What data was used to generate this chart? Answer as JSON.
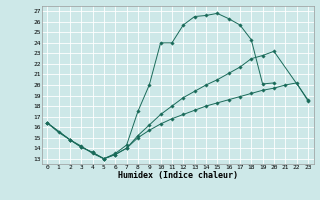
{
  "xlabel": "Humidex (Indice chaleur)",
  "xlim": [
    -0.5,
    23.5
  ],
  "ylim": [
    12.5,
    27.5
  ],
  "xticks": [
    0,
    1,
    2,
    3,
    4,
    5,
    6,
    7,
    8,
    9,
    10,
    11,
    12,
    13,
    14,
    15,
    16,
    17,
    18,
    19,
    20,
    21,
    22,
    23
  ],
  "yticks": [
    13,
    14,
    15,
    16,
    17,
    18,
    19,
    20,
    21,
    22,
    23,
    24,
    25,
    26,
    27
  ],
  "bg_color": "#cde8e8",
  "line_color": "#1a6b5a",
  "grid_color": "#ffffff",
  "line1_x": [
    0,
    1,
    2,
    3,
    4,
    5,
    6,
    7,
    8,
    9,
    10,
    11,
    12,
    13,
    14,
    15,
    16,
    17,
    18,
    19,
    20
  ],
  "line1_y": [
    16.4,
    15.5,
    14.8,
    14.2,
    13.5,
    13.0,
    13.5,
    14.3,
    17.5,
    20.0,
    24.0,
    24.0,
    25.7,
    26.5,
    26.6,
    26.8,
    26.3,
    25.7,
    24.3,
    20.1,
    20.2
  ],
  "line2_x": [
    0,
    2,
    3,
    4,
    5,
    6,
    7,
    8,
    9,
    10,
    11,
    12,
    13,
    14,
    15,
    16,
    17,
    18,
    19,
    20,
    23
  ],
  "line2_y": [
    16.4,
    14.8,
    14.1,
    13.6,
    13.0,
    13.4,
    14.0,
    15.2,
    16.2,
    17.2,
    18.0,
    18.8,
    19.4,
    20.0,
    20.5,
    21.1,
    21.7,
    22.5,
    22.8,
    23.2,
    18.6
  ],
  "line3_x": [
    0,
    2,
    3,
    4,
    5,
    6,
    7,
    8,
    9,
    10,
    11,
    12,
    13,
    14,
    15,
    16,
    17,
    18,
    19,
    20,
    21,
    22,
    23
  ],
  "line3_y": [
    16.4,
    14.8,
    14.1,
    13.6,
    13.0,
    13.4,
    14.0,
    15.0,
    15.7,
    16.3,
    16.8,
    17.2,
    17.6,
    18.0,
    18.3,
    18.6,
    18.9,
    19.2,
    19.5,
    19.7,
    20.0,
    20.2,
    18.5
  ]
}
